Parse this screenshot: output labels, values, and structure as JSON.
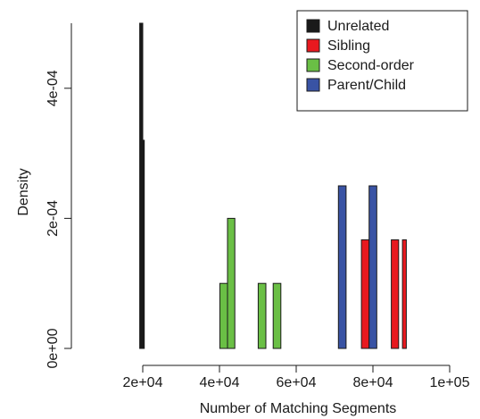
{
  "chart_data": {
    "type": "histogram",
    "title": "",
    "xlabel": "Number of Matching Segments",
    "ylabel": "Density",
    "xlim": [
      0,
      100000
    ],
    "ylim": [
      0,
      0.0005
    ],
    "x_ticks": [
      {
        "value": 20000,
        "label": "2e+04"
      },
      {
        "value": 40000,
        "label": "4e+04"
      },
      {
        "value": 60000,
        "label": "6e+04"
      },
      {
        "value": 80000,
        "label": "8e+04"
      },
      {
        "value": 100000,
        "label": "1e+05"
      }
    ],
    "y_ticks": [
      {
        "value": 0,
        "label": "0e+00"
      },
      {
        "value": 0.0002,
        "label": "2e-04"
      },
      {
        "value": 0.0004,
        "label": "4e-04"
      }
    ],
    "grid": false,
    "legend_position": "top-right",
    "series": [
      {
        "name": "Unrelated",
        "color": "#1a1a1a",
        "bins": [
          {
            "x0": 19200,
            "x1": 20000,
            "y": 0.0005
          },
          {
            "x0": 20000,
            "x1": 20400,
            "y": 0.00032
          }
        ]
      },
      {
        "name": "Sibling",
        "color": "#e8191f",
        "bins": [
          {
            "x0": 77000,
            "x1": 79000,
            "y": 0.000167
          },
          {
            "x0": 84800,
            "x1": 86700,
            "y": 0.000167
          },
          {
            "x0": 87700,
            "x1": 88700,
            "y": 0.000167
          }
        ]
      },
      {
        "name": "Second-order",
        "color": "#6abf45",
        "bins": [
          {
            "x0": 40100,
            "x1": 42100,
            "y": 0.0001
          },
          {
            "x0": 42100,
            "x1": 44000,
            "y": 0.0002
          },
          {
            "x0": 50100,
            "x1": 52100,
            "y": 0.0001
          },
          {
            "x0": 54000,
            "x1": 56000,
            "y": 0.0001
          }
        ]
      },
      {
        "name": "Parent/Child",
        "color": "#3953a4",
        "bins": [
          {
            "x0": 71000,
            "x1": 73000,
            "y": 0.00025
          },
          {
            "x0": 79000,
            "x1": 81000,
            "y": 0.00025
          }
        ]
      }
    ]
  }
}
